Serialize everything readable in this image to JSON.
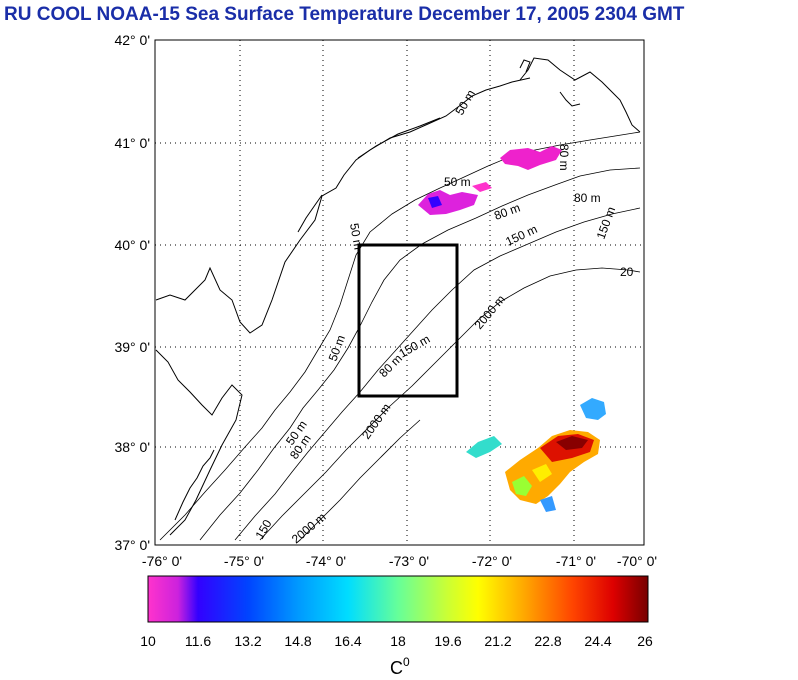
{
  "title": "RU COOL  NOAA-15 Sea Surface Temperature December 17, 2005 2304 GMT",
  "map": {
    "lat_labels": [
      "42° 0'",
      "41° 0'",
      "40° 0'",
      "39° 0'",
      "38° 0'",
      "37° 0'"
    ],
    "lon_labels": [
      "-76° 0'",
      "-75° 0'",
      "-74° 0'",
      "-73° 0'",
      "-72° 0'",
      "-71° 0'",
      "-70° 0'"
    ],
    "contour_labels": [
      "50 m",
      "50 m",
      "80 m",
      "80 m",
      "80 m",
      "150 m",
      "150 m",
      "20",
      "2000 m",
      "50 m",
      "50 m",
      "80 m",
      "150 m",
      "2000 m",
      "50 m",
      "80 m",
      "150",
      "2000 m"
    ],
    "box": {
      "lon_min": -73.5,
      "lon_max": -72.3,
      "lat_min": 38.5,
      "lat_max": 40.0
    }
  },
  "colorbar": {
    "ticks": [
      "10",
      "11.6",
      "13.2",
      "14.8",
      "16.4",
      "18",
      "19.6",
      "21.2",
      "22.8",
      "24.4",
      "26"
    ],
    "unit": "C",
    "unit_sup": "0",
    "min": 10,
    "max": 26
  },
  "colors": {
    "title": "#1a2ea8",
    "land_outline": "#000000",
    "grid": "#000000"
  }
}
